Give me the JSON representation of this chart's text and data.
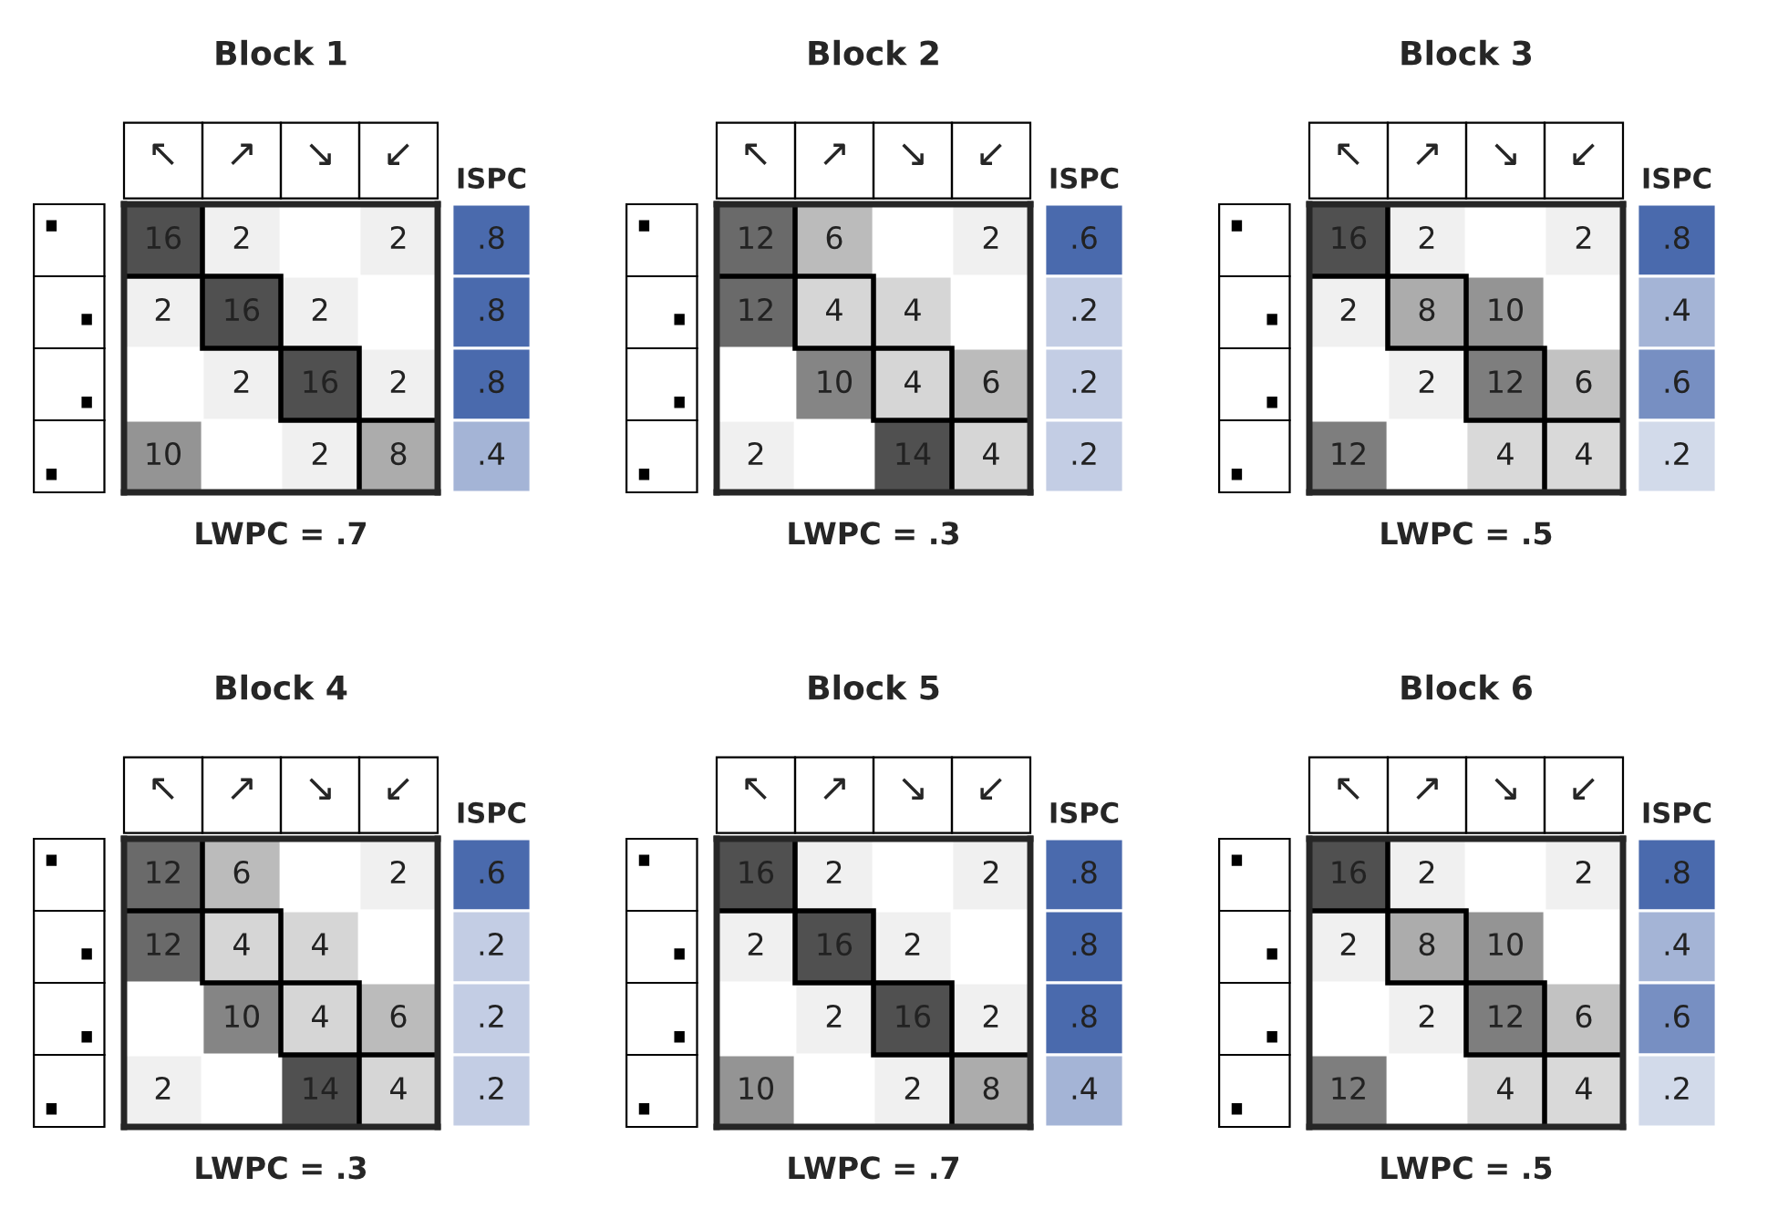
{
  "chart_data": [
    {
      "type": "heatmap",
      "title": "Block 1",
      "categories": [
        "↖",
        "↗",
        "↘",
        "↙"
      ],
      "y_categories": [
        null,
        null,
        null,
        null
      ],
      "cells": [
        [
          16,
          2,
          null,
          2
        ],
        [
          2,
          16,
          2,
          null
        ],
        [
          null,
          2,
          16,
          2
        ],
        [
          10,
          null,
          2,
          8
        ]
      ],
      "data_labels": true,
      "annotations": [
        "LWPC = .7"
      ]
    },
    {
      "type": "heatmap",
      "categories": [
        "ISPC"
      ],
      "y_categories": [
        null,
        null,
        null,
        null
      ],
      "cells": [
        [
          0.8
        ],
        [
          0.8
        ],
        [
          0.8
        ],
        [
          0.4
        ]
      ],
      "cell_labels": [
        [
          ".8"
        ],
        [
          ".8"
        ],
        [
          ".8"
        ],
        [
          ".4"
        ]
      ]
    },
    {
      "type": "heatmap",
      "title": "Block 2",
      "categories": [
        "↖",
        "↗",
        "↘",
        "↙"
      ],
      "y_categories": [
        null,
        null,
        null,
        null
      ],
      "cells": [
        [
          12,
          6,
          null,
          2
        ],
        [
          12,
          4,
          4,
          null
        ],
        [
          null,
          10,
          4,
          6
        ],
        [
          2,
          null,
          14,
          4
        ]
      ],
      "data_labels": true,
      "annotations": [
        "LWPC = .3"
      ]
    },
    {
      "type": "heatmap",
      "categories": [
        "ISPC"
      ],
      "y_categories": [
        null,
        null,
        null,
        null
      ],
      "cells": [
        [
          0.6
        ],
        [
          0.2
        ],
        [
          0.2
        ],
        [
          0.2
        ]
      ],
      "cell_labels": [
        [
          ".6"
        ],
        [
          ".2"
        ],
        [
          ".2"
        ],
        [
          ".2"
        ]
      ]
    },
    {
      "type": "heatmap",
      "title": "Block 3",
      "categories": [
        "↖",
        "↗",
        "↘",
        "↙"
      ],
      "y_categories": [
        null,
        null,
        null,
        null
      ],
      "cells": [
        [
          16,
          2,
          null,
          2
        ],
        [
          2,
          8,
          10,
          null
        ],
        [
          null,
          2,
          12,
          6
        ],
        [
          12,
          null,
          4,
          4
        ]
      ],
      "data_labels": true,
      "annotations": [
        "LWPC = .5"
      ]
    },
    {
      "type": "heatmap",
      "categories": [
        "ISPC"
      ],
      "y_categories": [
        null,
        null,
        null,
        null
      ],
      "cells": [
        [
          0.8
        ],
        [
          0.4
        ],
        [
          0.6
        ],
        [
          0.2
        ]
      ],
      "cell_labels": [
        [
          ".8"
        ],
        [
          ".4"
        ],
        [
          ".6"
        ],
        [
          ".2"
        ]
      ]
    },
    {
      "type": "heatmap",
      "title": "Block 4",
      "categories": [
        "↖",
        "↗",
        "↘",
        "↙"
      ],
      "y_categories": [
        null,
        null,
        null,
        null
      ],
      "cells": [
        [
          12,
          6,
          null,
          2
        ],
        [
          12,
          4,
          4,
          null
        ],
        [
          null,
          10,
          4,
          6
        ],
        [
          2,
          null,
          14,
          4
        ]
      ],
      "data_labels": true,
      "annotations": [
        "LWPC = .3"
      ]
    },
    {
      "type": "heatmap",
      "categories": [
        "ISPC"
      ],
      "y_categories": [
        null,
        null,
        null,
        null
      ],
      "cells": [
        [
          0.6
        ],
        [
          0.2
        ],
        [
          0.2
        ],
        [
          0.2
        ]
      ],
      "cell_labels": [
        [
          ".6"
        ],
        [
          ".2"
        ],
        [
          ".2"
        ],
        [
          ".2"
        ]
      ]
    },
    {
      "type": "heatmap",
      "title": "Block 5",
      "categories": [
        "↖",
        "↗",
        "↘",
        "↙"
      ],
      "y_categories": [
        null,
        null,
        null,
        null
      ],
      "cells": [
        [
          16,
          2,
          null,
          2
        ],
        [
          2,
          16,
          2,
          null
        ],
        [
          null,
          2,
          16,
          2
        ],
        [
          10,
          null,
          2,
          8
        ]
      ],
      "data_labels": true,
      "annotations": [
        "LWPC = .7"
      ]
    },
    {
      "type": "heatmap",
      "categories": [
        "ISPC"
      ],
      "y_categories": [
        null,
        null,
        null,
        null
      ],
      "cells": [
        [
          0.8
        ],
        [
          0.8
        ],
        [
          0.8
        ],
        [
          0.4
        ]
      ],
      "cell_labels": [
        [
          ".8"
        ],
        [
          ".8"
        ],
        [
          ".8"
        ],
        [
          ".4"
        ]
      ]
    },
    {
      "type": "heatmap",
      "title": "Block 6",
      "categories": [
        "↖",
        "↗",
        "↘",
        "↙"
      ],
      "y_categories": [
        null,
        null,
        null,
        null
      ],
      "cells": [
        [
          16,
          2,
          null,
          2
        ],
        [
          2,
          8,
          10,
          null
        ],
        [
          null,
          2,
          12,
          6
        ],
        [
          12,
          null,
          4,
          4
        ]
      ],
      "data_labels": true,
      "annotations": [
        "LWPC = .5"
      ]
    },
    {
      "type": "heatmap",
      "categories": [
        "ISPC"
      ],
      "y_categories": [
        null,
        null,
        null,
        null
      ],
      "cells": [
        [
          0.8
        ],
        [
          0.4
        ],
        [
          0.6
        ],
        [
          0.2
        ]
      ],
      "cell_labels": [
        [
          ".8"
        ],
        [
          ".4"
        ],
        [
          ".6"
        ],
        [
          ".2"
        ]
      ]
    }
  ]
}
